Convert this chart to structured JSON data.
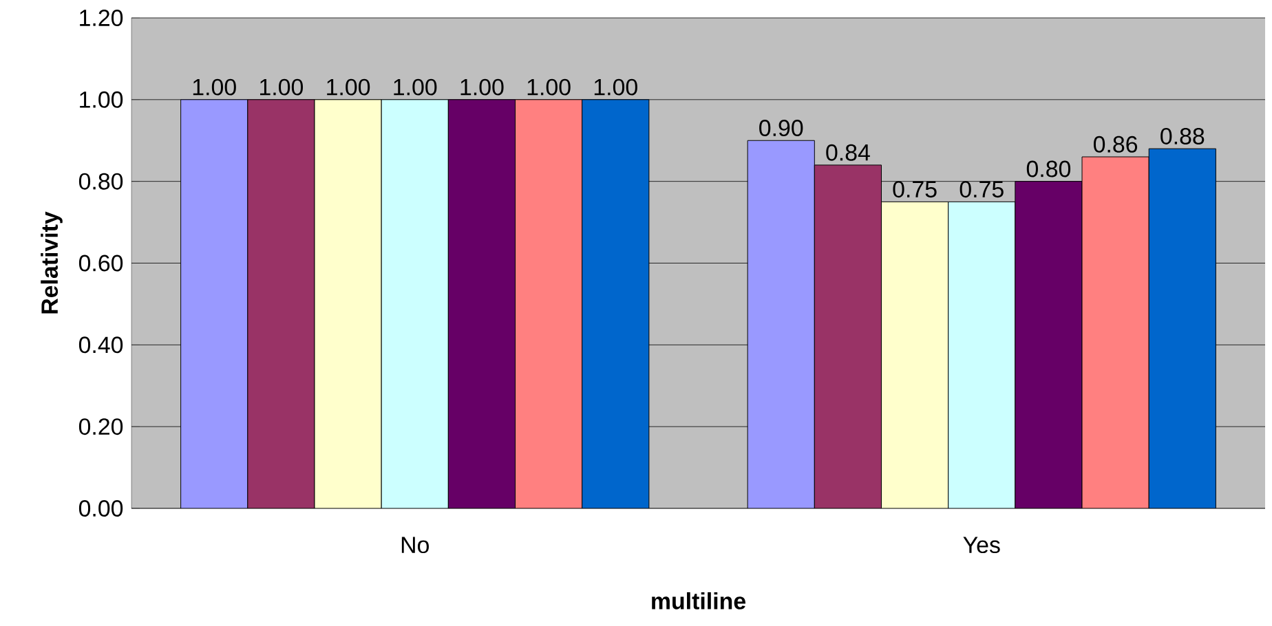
{
  "chart_data": {
    "type": "bar",
    "xlabel": "multiline",
    "ylabel": "Relativity",
    "categories": [
      "No",
      "Yes"
    ],
    "series": [
      {
        "color": "#9999ff",
        "values": [
          1.0,
          0.9
        ],
        "value_labels": [
          "1.00",
          "0.90"
        ]
      },
      {
        "color": "#993366",
        "values": [
          1.0,
          0.84
        ],
        "value_labels": [
          "1.00",
          "0.84"
        ]
      },
      {
        "color": "#ffffcc",
        "values": [
          1.0,
          0.75
        ],
        "value_labels": [
          "1.00",
          "0.75"
        ]
      },
      {
        "color": "#ccffff",
        "values": [
          1.0,
          0.75
        ],
        "value_labels": [
          "1.00",
          "0.75"
        ]
      },
      {
        "color": "#660066",
        "values": [
          1.0,
          0.8
        ],
        "value_labels": [
          "1.00",
          "0.80"
        ]
      },
      {
        "color": "#ff8080",
        "values": [
          1.0,
          0.86
        ],
        "value_labels": [
          "1.00",
          "0.86"
        ]
      },
      {
        "color": "#0066cc",
        "values": [
          1.0,
          0.88
        ],
        "value_labels": [
          "1.00",
          "0.88"
        ]
      }
    ],
    "ylim": [
      0,
      1.2
    ],
    "yticks": [
      {
        "value": 0,
        "label": "0.00"
      },
      {
        "value": 0.2,
        "label": "0.20"
      },
      {
        "value": 0.4,
        "label": "0.40"
      },
      {
        "value": 0.6,
        "label": "0.60"
      },
      {
        "value": 0.8,
        "label": "0.80"
      },
      {
        "value": 1.0,
        "label": "1.00"
      },
      {
        "value": 1.2,
        "label": "1.20"
      }
    ],
    "grid": "y"
  }
}
